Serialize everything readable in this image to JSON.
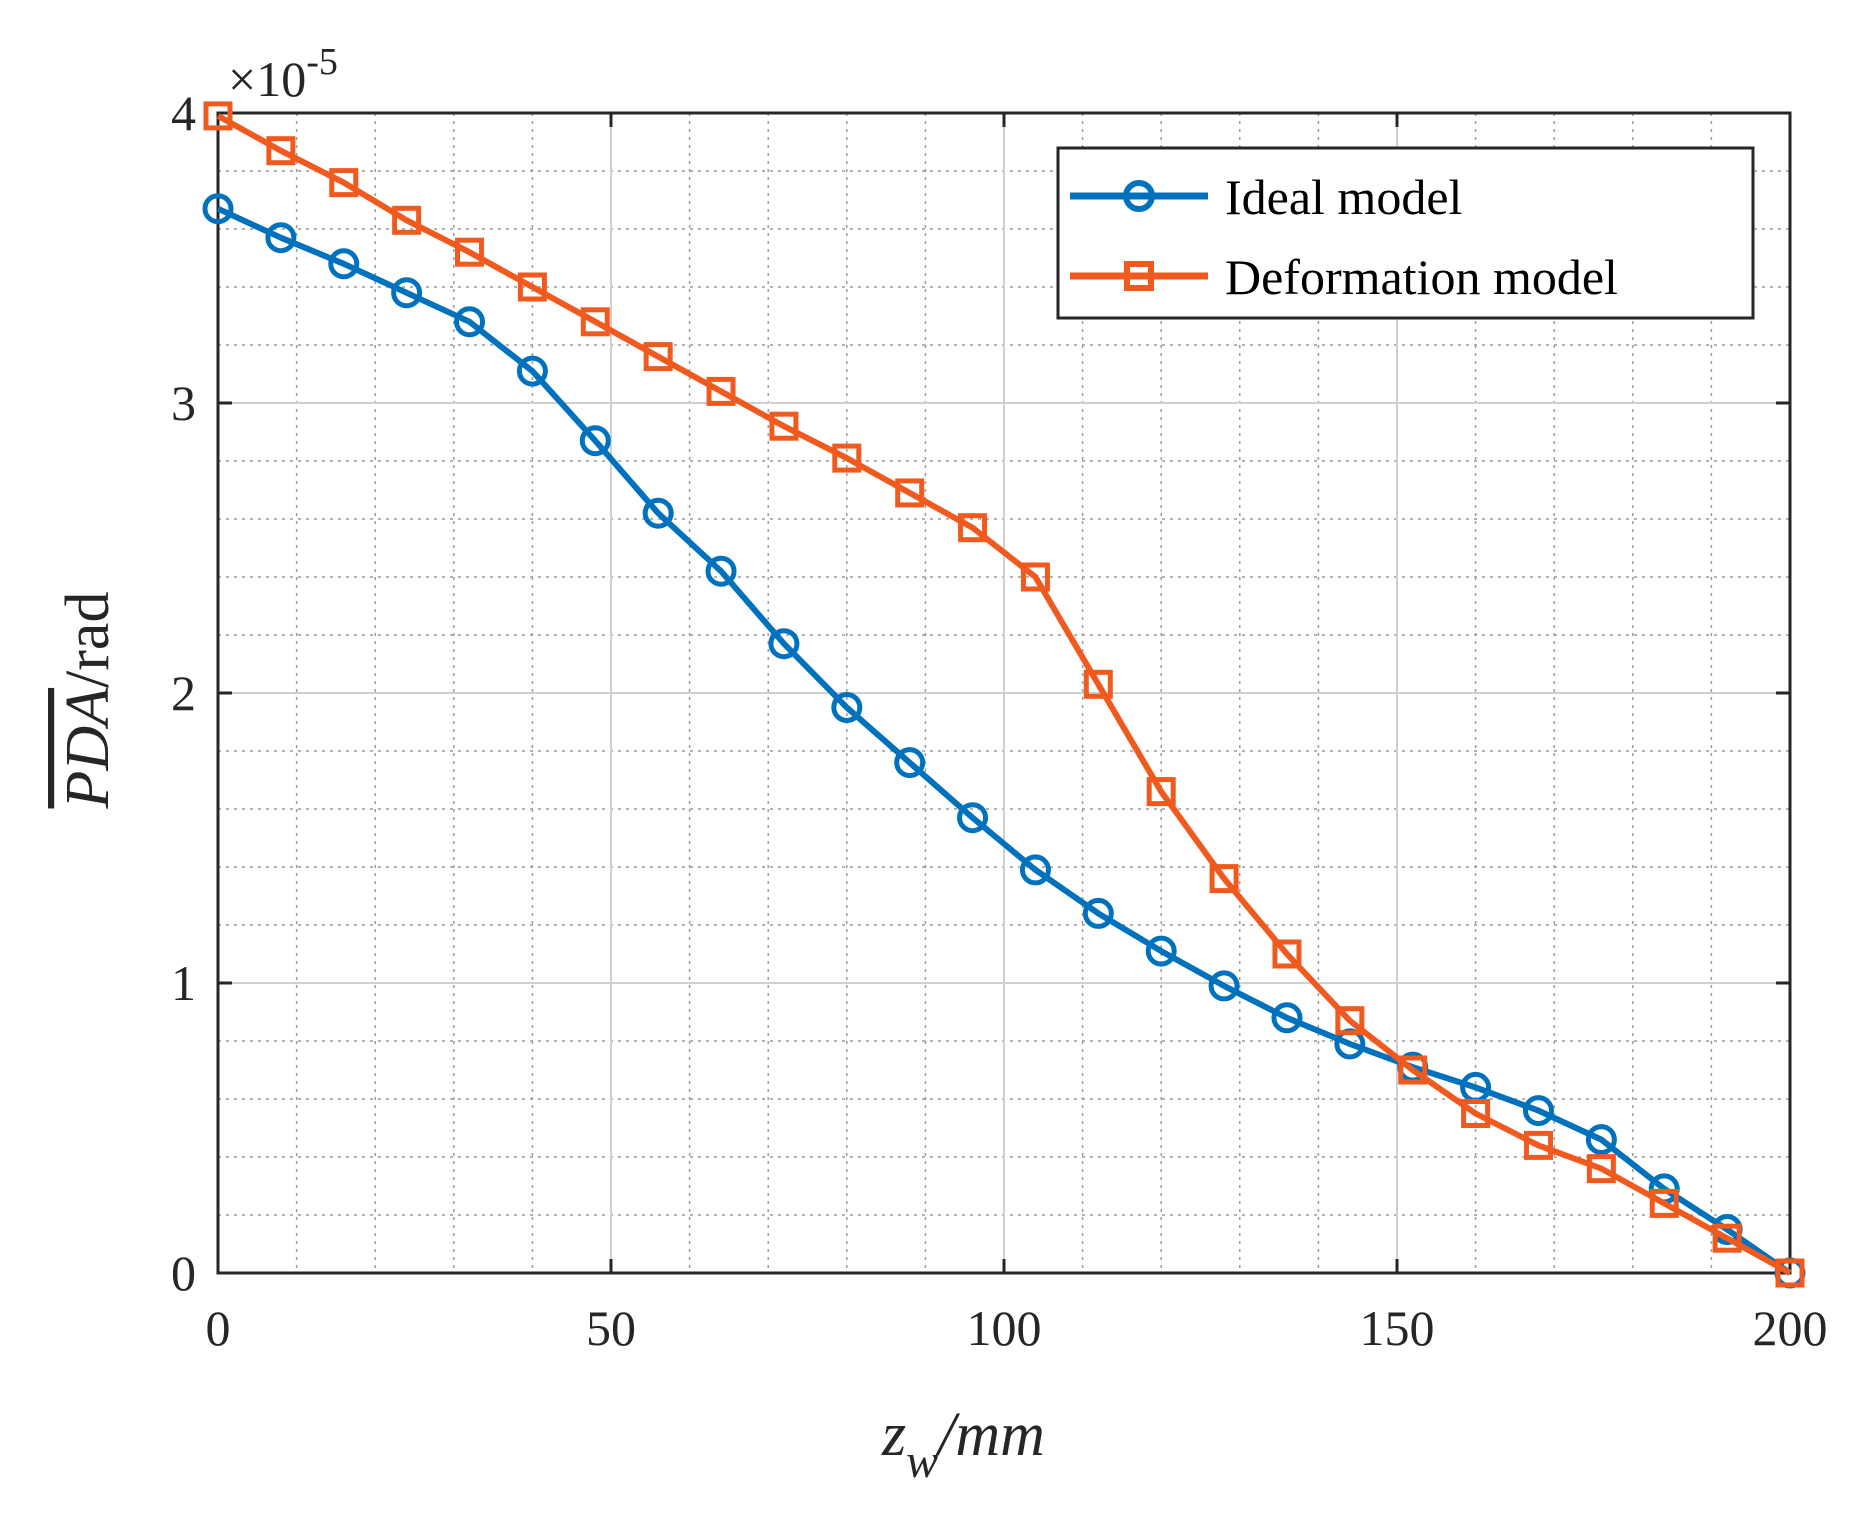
{
  "chart_data": {
    "type": "line",
    "title": "",
    "xlabel": {
      "base": "z",
      "subscript": "w",
      "unit": "/mm"
    },
    "ylabel": {
      "base": "PDA",
      "unit": "/rad"
    },
    "y_exponent": {
      "prefix": "×10",
      "power": "-5"
    },
    "xlim": [
      0,
      200
    ],
    "ylim": [
      0,
      4
    ],
    "xticks": [
      "0",
      "50",
      "100",
      "150",
      "200"
    ],
    "yticks": [
      "0",
      "1",
      "2",
      "3",
      "4"
    ],
    "grid": true,
    "minor_grid": true,
    "legend_position": "top-right",
    "x": [
      0,
      8,
      16,
      24,
      32,
      40,
      48,
      56,
      64,
      72,
      80,
      88,
      96,
      104,
      112,
      120,
      128,
      136,
      144,
      152,
      160,
      168,
      176,
      184,
      192,
      200
    ],
    "series": [
      {
        "name": "Ideal model",
        "color": "#0072BD",
        "marker": "circle",
        "values": [
          3.67,
          3.57,
          3.48,
          3.38,
          3.28,
          3.11,
          2.87,
          2.62,
          2.42,
          2.17,
          1.95,
          1.76,
          1.57,
          1.39,
          1.24,
          1.11,
          0.99,
          0.88,
          0.79,
          0.71,
          0.64,
          0.56,
          0.46,
          0.29,
          0.15,
          0.0
        ]
      },
      {
        "name": "Deformation model",
        "color": "#F05A1E",
        "marker": "square",
        "values": [
          3.99,
          3.87,
          3.76,
          3.63,
          3.52,
          3.4,
          3.28,
          3.16,
          3.04,
          2.92,
          2.81,
          2.69,
          2.57,
          2.4,
          2.03,
          1.66,
          1.36,
          1.1,
          0.87,
          0.7,
          0.55,
          0.44,
          0.36,
          0.24,
          0.12,
          0.0
        ]
      }
    ]
  }
}
